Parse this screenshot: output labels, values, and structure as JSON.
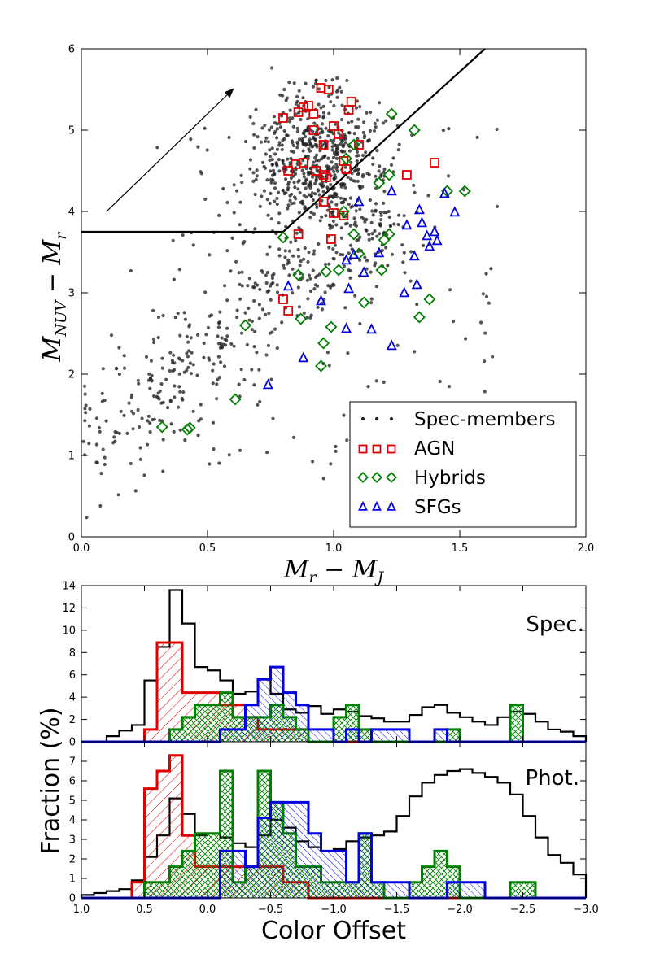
{
  "chart_data": [
    {
      "type": "scatter",
      "title": "",
      "xlabel": "M_r − M_J",
      "ylabel": "M_NUV − M_r",
      "xlim": [
        0.0,
        2.0
      ],
      "ylim": [
        0,
        6
      ],
      "xticks": [
        "0.0",
        "0.5",
        "1.0",
        "1.5",
        "2.0"
      ],
      "yticks": [
        "0",
        "1",
        "2",
        "3",
        "4",
        "5",
        "6"
      ],
      "legend": {
        "placement": "lower-right",
        "entries": [
          "Spec-members",
          "AGN",
          "Hybrids",
          "SFGs"
        ]
      },
      "divider_line": [
        [
          0.0,
          3.75
        ],
        [
          0.8,
          3.75
        ],
        [
          1.6,
          6.0
        ]
      ],
      "arrow": {
        "from": [
          0.1,
          4.0
        ],
        "to": [
          0.6,
          5.5
        ]
      },
      "series": [
        {
          "name": "AGN",
          "color": "#e00000",
          "marker": "square",
          "x": [
            0.8,
            0.86,
            0.88,
            0.9,
            0.92,
            0.95,
            0.98,
            1.0,
            1.02,
            0.96,
            0.92,
            0.88,
            0.82,
            0.85,
            0.97,
            1.04,
            1.06,
            1.1,
            0.93,
            0.96,
            1.05,
            1.07,
            1.29,
            1.4,
            0.96,
            1.0,
            1.04,
            0.86,
            0.99,
            0.8,
            0.82
          ],
          "y": [
            5.15,
            5.22,
            5.28,
            5.3,
            5.2,
            5.52,
            5.5,
            5.05,
            4.95,
            4.82,
            5.0,
            4.6,
            4.5,
            4.58,
            4.42,
            4.62,
            5.25,
            4.82,
            4.5,
            4.12,
            4.52,
            5.35,
            4.45,
            4.6,
            4.45,
            3.98,
            3.95,
            3.72,
            3.66,
            2.92,
            2.78
          ]
        },
        {
          "name": "Hybrids",
          "color": "#008000",
          "marker": "diamond",
          "x": [
            1.23,
            1.32,
            1.45,
            1.52,
            1.08,
            1.05,
            1.18,
            1.22,
            1.04,
            1.08,
            1.2,
            1.22,
            0.8,
            1.1,
            0.86,
            0.97,
            1.02,
            1.19,
            1.12,
            0.65,
            0.87,
            0.99,
            0.96,
            0.95,
            1.38,
            1.34,
            0.61,
            0.32,
            0.42,
            0.43
          ],
          "y": [
            5.2,
            5.0,
            4.25,
            4.25,
            4.82,
            4.65,
            4.35,
            4.45,
            4.0,
            3.72,
            3.65,
            3.72,
            3.68,
            3.48,
            3.22,
            3.26,
            3.28,
            3.28,
            2.88,
            2.6,
            2.68,
            2.58,
            2.38,
            2.1,
            2.92,
            2.7,
            1.69,
            1.35,
            1.32,
            1.34
          ]
        },
        {
          "name": "SFGs",
          "color": "#0000e0",
          "marker": "triangle",
          "x": [
            1.1,
            1.23,
            1.44,
            1.48,
            1.34,
            1.35,
            1.29,
            1.37,
            1.4,
            1.41,
            1.38,
            1.32,
            1.08,
            1.05,
            1.06,
            1.12,
            1.18,
            0.82,
            0.95,
            1.05,
            1.15,
            1.28,
            1.33,
            1.23,
            0.88,
            0.74
          ],
          "y": [
            4.12,
            4.25,
            4.22,
            3.99,
            4.02,
            3.86,
            3.83,
            3.7,
            3.75,
            3.64,
            3.57,
            3.45,
            3.47,
            3.4,
            3.05,
            3.25,
            3.49,
            3.08,
            2.9,
            2.56,
            2.55,
            3.0,
            3.1,
            2.35,
            2.2,
            1.87
          ]
        }
      ],
      "spec_members_note": "approximately 1000 black points, denser toward the upper-center"
    },
    {
      "type": "histogram",
      "panel_label": "Spec.",
      "xlim": [
        1.0,
        -3.0
      ],
      "ylim": [
        0,
        14
      ],
      "yticks": [
        "0",
        "2",
        "4",
        "6",
        "8",
        "10",
        "12",
        "14"
      ],
      "bin_edges": [
        1.0,
        0.9,
        0.8,
        0.7,
        0.6,
        0.5,
        0.4,
        0.3,
        0.2,
        0.1,
        0.0,
        -0.1,
        -0.2,
        -0.3,
        -0.4,
        -0.5,
        -0.6,
        -0.7,
        -0.8,
        -0.9,
        -1.0,
        -1.1,
        -1.2,
        -1.3,
        -1.4,
        -1.5,
        -1.6,
        -1.7,
        -1.8,
        -1.9,
        -2.0,
        -2.1,
        -2.2,
        -2.3,
        -2.4,
        -2.5,
        -2.6,
        -2.7,
        -2.8,
        -2.9,
        -3.0
      ],
      "series": [
        {
          "name": "Spec-members",
          "color": "#000000",
          "hatch": "none",
          "values": [
            0,
            0,
            0.5,
            1,
            1.5,
            5.5,
            8.5,
            13.6,
            10.6,
            6.7,
            6.4,
            5.5,
            4.3,
            4.5,
            5.6,
            4.3,
            2.9,
            2.6,
            3.2,
            2.5,
            2.9,
            2.7,
            2.3,
            2.1,
            1.8,
            1.8,
            2.4,
            3.1,
            3.3,
            2.6,
            2.2,
            1.8,
            1.5,
            2.2,
            2.7,
            2.5,
            1.8,
            1.1,
            0.9,
            0.5
          ]
        },
        {
          "name": "AGN",
          "color": "#e00000",
          "hatch": "diagonal",
          "values": [
            0,
            0,
            0,
            0,
            0,
            1.1,
            8.9,
            8.9,
            4.4,
            4.4,
            4.4,
            3.3,
            3.3,
            2.2,
            1.1,
            1.1,
            1.1,
            1.1,
            0,
            0,
            0,
            0,
            0,
            0,
            0,
            0,
            0,
            0,
            0,
            0,
            0,
            0,
            0,
            0,
            0,
            0,
            0,
            0,
            0,
            0
          ]
        },
        {
          "name": "Hybrids",
          "color": "#008000",
          "hatch": "cross",
          "values": [
            0,
            0,
            0,
            0,
            0,
            0,
            0,
            1.1,
            2.2,
            3.3,
            3.3,
            4.4,
            2.2,
            2.2,
            2.2,
            3.3,
            2.2,
            1.1,
            0,
            0,
            2.2,
            3.3,
            1.1,
            0,
            0,
            0,
            0,
            0,
            0,
            1.1,
            0,
            0,
            0,
            0,
            3.3,
            0,
            0,
            0,
            0,
            0
          ]
        },
        {
          "name": "SFGs",
          "color": "#0000e0",
          "hatch": "diagonal-reverse",
          "values": [
            0,
            0,
            0,
            0,
            0,
            0,
            0,
            0,
            0,
            0,
            0,
            1.1,
            1.1,
            3.3,
            5.6,
            6.7,
            4.4,
            3.3,
            1.1,
            1.1,
            0,
            1.1,
            0,
            1.1,
            1.1,
            1.1,
            0,
            0,
            1.1,
            0,
            0,
            0,
            0,
            0,
            0,
            0,
            0,
            0,
            0,
            0
          ]
        }
      ]
    },
    {
      "type": "histogram",
      "panel_label": "Phot.",
      "xlabel": "Color Offset",
      "ylabel": "Fraction (%)",
      "xlim": [
        1.0,
        -3.0
      ],
      "ylim": [
        0,
        8
      ],
      "yticks": [
        "0",
        "1",
        "2",
        "3",
        "4",
        "5",
        "6",
        "7"
      ],
      "xticks": [
        "1.0",
        "0.5",
        "0.0",
        "−0.5",
        "−1.0",
        "−1.5",
        "−2.0",
        "−2.5",
        "−3.0"
      ],
      "bin_edges": [
        1.0,
        0.9,
        0.8,
        0.7,
        0.6,
        0.5,
        0.4,
        0.3,
        0.2,
        0.1,
        0.0,
        -0.1,
        -0.2,
        -0.3,
        -0.4,
        -0.5,
        -0.6,
        -0.7,
        -0.8,
        -0.9,
        -1.0,
        -1.1,
        -1.2,
        -1.3,
        -1.4,
        -1.5,
        -1.6,
        -1.7,
        -1.8,
        -1.9,
        -2.0,
        -2.1,
        -2.2,
        -2.3,
        -2.4,
        -2.5,
        -2.6,
        -2.7,
        -2.8,
        -2.9,
        -3.0
      ],
      "series": [
        {
          "name": "Spec-members",
          "color": "#000000",
          "hatch": "none",
          "values": [
            0.15,
            0.25,
            0.35,
            0.45,
            0.9,
            2.1,
            3.2,
            5.1,
            4.3,
            3.2,
            3.3,
            3.1,
            2.8,
            2.6,
            3.2,
            4.0,
            3.6,
            2.9,
            2.6,
            2.4,
            2.5,
            2.9,
            3.1,
            3.2,
            3.4,
            4.2,
            5.2,
            5.9,
            6.3,
            6.5,
            6.6,
            6.4,
            6.2,
            5.9,
            5.3,
            4.2,
            3.1,
            2.2,
            1.8,
            1.2
          ]
        },
        {
          "name": "AGN",
          "color": "#e00000",
          "hatch": "diagonal",
          "values": [
            0,
            0,
            0,
            0,
            0.8,
            5.6,
            6.5,
            7.3,
            3.2,
            1.6,
            1.6,
            1.6,
            1.6,
            1.6,
            1.6,
            1.6,
            0.8,
            0.8,
            0,
            0,
            0,
            0,
            0,
            0,
            0,
            0,
            0,
            0,
            0,
            0,
            0,
            0,
            0,
            0,
            0,
            0,
            0,
            0,
            0,
            0
          ]
        },
        {
          "name": "Hybrids",
          "color": "#008000",
          "hatch": "cross",
          "values": [
            0,
            0,
            0,
            0,
            0,
            0.8,
            0.8,
            1.6,
            2.4,
            3.3,
            3.3,
            6.5,
            0.8,
            1.6,
            6.5,
            4.9,
            3.3,
            1.6,
            1.6,
            0.8,
            0.8,
            0.8,
            3.3,
            0.8,
            0,
            0,
            0.8,
            1.6,
            2.4,
            1.6,
            0,
            0,
            0,
            0,
            0.8,
            0.8,
            0,
            0,
            0,
            0
          ]
        },
        {
          "name": "SFGs",
          "color": "#0000e0",
          "hatch": "diagonal-reverse",
          "values": [
            0,
            0,
            0,
            0,
            0,
            0,
            0,
            0,
            0,
            0,
            0,
            2.4,
            2.4,
            1.6,
            4.1,
            4.9,
            4.9,
            4.9,
            3.3,
            2.4,
            2.4,
            0.8,
            3.3,
            0.8,
            0.8,
            0.8,
            0,
            0,
            0,
            0.8,
            0.8,
            0.8,
            0,
            0,
            0,
            0,
            0,
            0,
            0,
            0
          ]
        }
      ]
    }
  ]
}
